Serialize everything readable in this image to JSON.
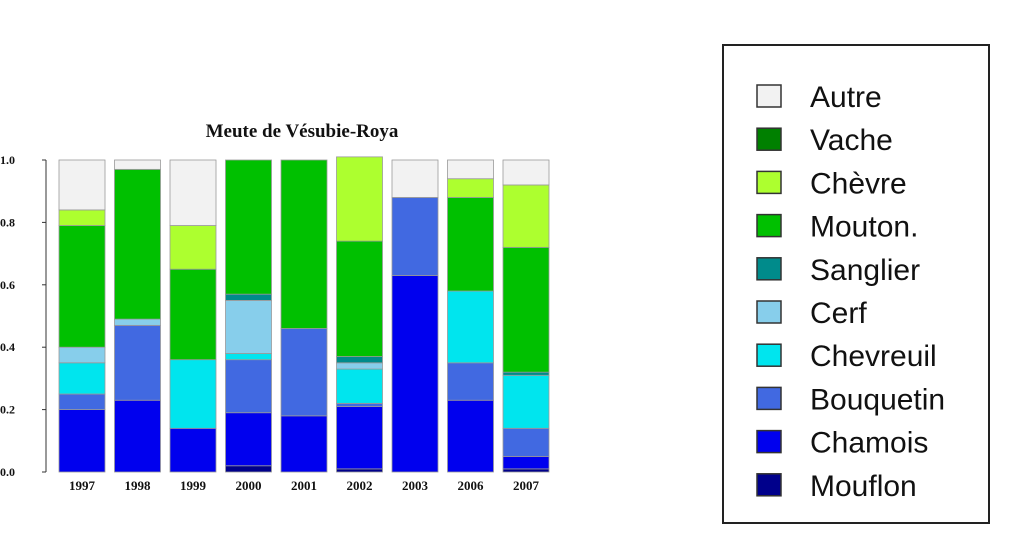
{
  "chart_data": {
    "type": "bar",
    "stacked": true,
    "normalized": true,
    "title": "Meute de Vésubie-Roya",
    "xlabel": "",
    "ylabel": "",
    "ylim": [
      0,
      1
    ],
    "y_ticks": [
      "0.0",
      "0.2",
      "0.4",
      "0.6",
      "0.8",
      "1.0"
    ],
    "categories": [
      "1997",
      "1998",
      "1999",
      "2000",
      "2001",
      "2002",
      "2003",
      "2006",
      "2007"
    ],
    "legend_position": "right",
    "series": [
      {
        "name": "Mouflon",
        "color": "#00008b",
        "values": [
          0.0,
          0.0,
          0.0,
          0.02,
          0.0,
          0.01,
          0.0,
          0.0,
          0.01
        ]
      },
      {
        "name": "Chamois",
        "color": "#0000ee",
        "values": [
          0.2,
          0.23,
          0.14,
          0.17,
          0.18,
          0.2,
          0.63,
          0.23,
          0.04
        ]
      },
      {
        "name": "Bouquetin",
        "color": "#4169e1",
        "values": [
          0.05,
          0.24,
          0.0,
          0.17,
          0.28,
          0.01,
          0.25,
          0.12,
          0.09
        ]
      },
      {
        "name": "Chevreuil",
        "color": "#00e5ee",
        "values": [
          0.1,
          0.0,
          0.22,
          0.02,
          0.0,
          0.11,
          0.0,
          0.23,
          0.17
        ]
      },
      {
        "name": "Cerf",
        "color": "#87ceeb",
        "values": [
          0.05,
          0.02,
          0.0,
          0.17,
          0.0,
          0.02,
          0.0,
          0.0,
          0.0
        ]
      },
      {
        "name": "Sanglier",
        "color": "#008b8b",
        "values": [
          0.0,
          0.0,
          0.0,
          0.02,
          0.0,
          0.02,
          0.0,
          0.0,
          0.01
        ]
      },
      {
        "name": "Mouton.",
        "color": "#00c000",
        "values": [
          0.39,
          0.48,
          0.29,
          0.43,
          0.54,
          0.37,
          0.0,
          0.3,
          0.4
        ]
      },
      {
        "name": "Chèvre",
        "color": "#adff2f",
        "values": [
          0.05,
          0.0,
          0.14,
          0.0,
          0.0,
          0.27,
          0.0,
          0.06,
          0.2
        ]
      },
      {
        "name": "Vache",
        "color": "#008000",
        "values": [
          0.0,
          0.0,
          0.0,
          0.0,
          0.0,
          0.0,
          0.0,
          0.0,
          0.0
        ]
      },
      {
        "name": "Autre",
        "color": "#f2f2f2",
        "values": [
          0.16,
          0.03,
          0.21,
          0.0,
          0.0,
          0.0,
          0.12,
          0.06,
          0.08
        ]
      }
    ],
    "legend_order": [
      "Autre",
      "Vache",
      "Chèvre",
      "Mouton.",
      "Sanglier",
      "Cerf",
      "Chevreuil",
      "Bouquetin",
      "Chamois",
      "Mouflon"
    ]
  }
}
